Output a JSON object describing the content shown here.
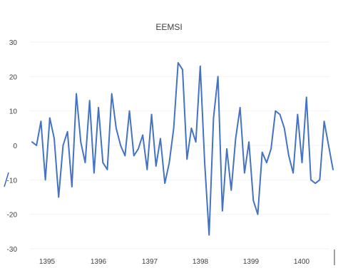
{
  "chart_data": {
    "type": "line",
    "title": "EEMSI",
    "xlabel": "",
    "ylabel": "",
    "ylim": [
      -30,
      30
    ],
    "y_ticks": [
      30,
      20,
      10,
      0,
      -10,
      -20,
      -30
    ],
    "x_ticks": [
      "1395",
      "1396",
      "1397",
      "1398",
      "1399",
      "1400"
    ],
    "grid": "horizontal",
    "legend": "none",
    "colors": {
      "series": "#4472c4",
      "text": "#404040",
      "grid": "#f2f2f2"
    },
    "series": [
      {
        "values": [
          1,
          0,
          7,
          -10,
          8,
          2,
          -15,
          0,
          4,
          -12,
          15,
          1,
          -5,
          13,
          -8,
          11,
          -5,
          -7,
          15,
          5,
          0,
          -3,
          10,
          -3,
          -1,
          3,
          -7,
          9,
          -6,
          2,
          -11,
          -5,
          5,
          24,
          22,
          -4,
          5,
          1,
          23,
          -5,
          -26,
          8,
          20,
          -19,
          -1,
          -13,
          2,
          11,
          -8,
          1,
          -16,
          -20,
          -2,
          -5,
          -1,
          10,
          9,
          5,
          -3,
          -8,
          9,
          -5,
          14,
          -10,
          -11,
          -10,
          7,
          0,
          -7
        ]
      }
    ]
  }
}
